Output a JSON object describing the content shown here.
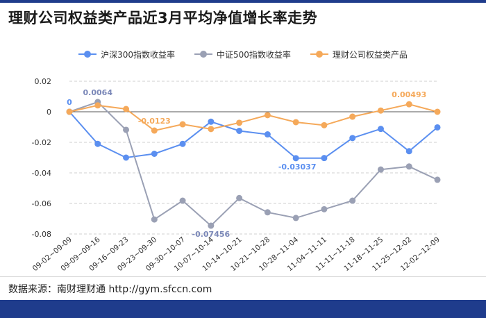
{
  "title": "理财公司权益类产品近3月平均净值增长率走势",
  "source": "数据来源：南财理财通 http://gym.sfccn.com",
  "chart_data": {
    "type": "line",
    "title": "理财公司权益类产品近3月平均净值增长率走势",
    "xlabel": "",
    "ylabel": "",
    "ylim": [
      -0.08,
      0.02
    ],
    "yticks": [
      0.02,
      0,
      -0.02,
      -0.04,
      -0.06,
      -0.08
    ],
    "ytick_labels": [
      "0.02",
      "0",
      "-0.02",
      "-0.04",
      "-0.06",
      "-0.08"
    ],
    "grid": true,
    "legend_position": "top",
    "categories": [
      "09-02~09-09",
      "09-09~09-16",
      "09-16~09-23",
      "09-23~09-30",
      "09-30~10-07",
      "10-07~10-14",
      "10-14~10-21",
      "10-21~10-28",
      "10-28~11-04",
      "11-04~11-11",
      "11-11~11-18",
      "11-18~11-25",
      "11-25~12-02",
      "12-02~12-09"
    ],
    "series": [
      {
        "name": "沪深300指数收益率",
        "color": "#5b8ff0",
        "values": [
          0,
          -0.021,
          -0.03,
          -0.0275,
          -0.021,
          -0.0065,
          -0.0125,
          -0.0148,
          -0.03037,
          -0.0303,
          -0.0172,
          -0.0112,
          -0.0258,
          -0.0102
        ]
      },
      {
        "name": "中证500指数收益率",
        "color": "#9aa0b4",
        "values": [
          0,
          0.0064,
          -0.0118,
          -0.0705,
          -0.0582,
          -0.07456,
          -0.0565,
          -0.0658,
          -0.0695,
          -0.0638,
          -0.0582,
          -0.0378,
          -0.0358,
          -0.0445
        ]
      },
      {
        "name": "理财公司权益类产品",
        "color": "#f5a95a",
        "values": [
          0,
          0.0042,
          0.0018,
          -0.0123,
          -0.0082,
          -0.0113,
          -0.0072,
          -0.0022,
          -0.0068,
          -0.0088,
          -0.0032,
          0.0008,
          0.00493,
          0
        ]
      }
    ],
    "annotations": [
      {
        "series": 0,
        "index": 0,
        "text": "0",
        "color": "#5b8ff0"
      },
      {
        "series": 1,
        "index": 1,
        "text": "0.0064",
        "color": "#7b88b8"
      },
      {
        "series": 2,
        "index": 3,
        "text": "-0.0123",
        "color": "#f5a95a"
      },
      {
        "series": 1,
        "index": 5,
        "text": "-0.07456",
        "color": "#7b88b8"
      },
      {
        "series": 0,
        "index": 8,
        "text": "-0.03037",
        "color": "#5b8ff0"
      },
      {
        "series": 2,
        "index": 12,
        "text": "0.00493",
        "color": "#f5a95a"
      }
    ]
  }
}
